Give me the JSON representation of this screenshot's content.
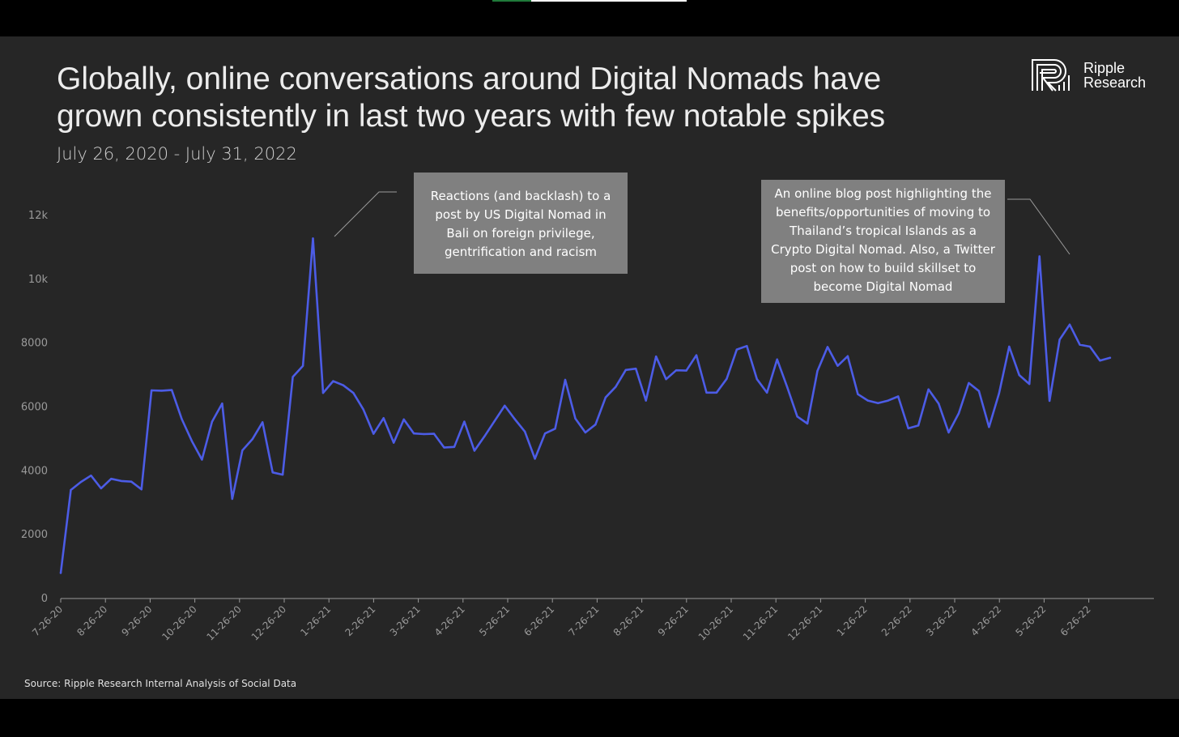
{
  "title_line1": "Globally, online conversations around Digital Nomads have",
  "title_line2": "grown consistently in last two years with few notable spikes",
  "subtitle": "July 26, 2020 - July 31, 2022",
  "logo": {
    "line1": "Ripple",
    "line2": "Research"
  },
  "source": "Source: Ripple Research Internal Analysis of Social Data",
  "annotations": [
    {
      "text": "Reactions (and backlash) to a post by US Digital Nomad in Bali on foreign privilege, gentrification and racism"
    },
    {
      "text": "An online blog post highlighting the benefits/opportunities of moving to Thailand’s tropical Islands as a Crypto Digital Nomad. Also, a Twitter post on how to build skillset to become Digital Nomad"
    }
  ],
  "colors": {
    "line": "#4c5ce6",
    "background": "#262626",
    "axis": "#9a9a9a",
    "annotation_box": "#808080"
  },
  "chart_data": {
    "type": "line",
    "ylim": [
      0,
      12000
    ],
    "yticks": [
      0,
      2000,
      4000,
      6000,
      8000,
      10000,
      12000
    ],
    "ytick_labels": [
      "0",
      "2000",
      "4000",
      "6000",
      "8000",
      "10k",
      "12k"
    ],
    "xtick_labels": [
      "7-26-20",
      "8-26-20",
      "9-26-20",
      "10-26-20",
      "11-26-20",
      "12-26-20",
      "1-26-21",
      "2-26-21",
      "3-26-21",
      "4-26-21",
      "5-26-21",
      "6-26-21",
      "7-26-21",
      "8-26-21",
      "9-26-21",
      "10-26-21",
      "11-26-21",
      "12-26-21",
      "1-26-22",
      "2-26-22",
      "3-26-22",
      "4-26-22",
      "5-26-22",
      "6-26-22"
    ],
    "x_period": "weekly",
    "grid": false,
    "values": [
      800,
      3400,
      3650,
      3850,
      3450,
      3750,
      3680,
      3660,
      3420,
      6520,
      6510,
      6530,
      5620,
      4930,
      4350,
      5540,
      6110,
      3120,
      4640,
      4990,
      5520,
      3950,
      3880,
      6940,
      7290,
      11280,
      6440,
      6810,
      6680,
      6440,
      5920,
      5160,
      5650,
      4880,
      5610,
      5170,
      5150,
      5160,
      4730,
      4750,
      5540,
      4630,
      5080,
      5560,
      6040,
      5620,
      5230,
      4380,
      5170,
      5320,
      6850,
      5640,
      5200,
      5450,
      6300,
      6630,
      7160,
      7200,
      6200,
      7580,
      6870,
      7150,
      7140,
      7620,
      6450,
      6450,
      6880,
      7800,
      7910,
      6870,
      6450,
      7490,
      6620,
      5700,
      5480,
      7130,
      7880,
      7290,
      7590,
      6400,
      6200,
      6120,
      6200,
      6330,
      5330,
      5420,
      6550,
      6110,
      5200,
      5800,
      6750,
      6500,
      5370,
      6430,
      7890,
      7000,
      6720,
      10720,
      6190,
      8110,
      8580,
      7950,
      7890,
      7450,
      7540
    ]
  }
}
